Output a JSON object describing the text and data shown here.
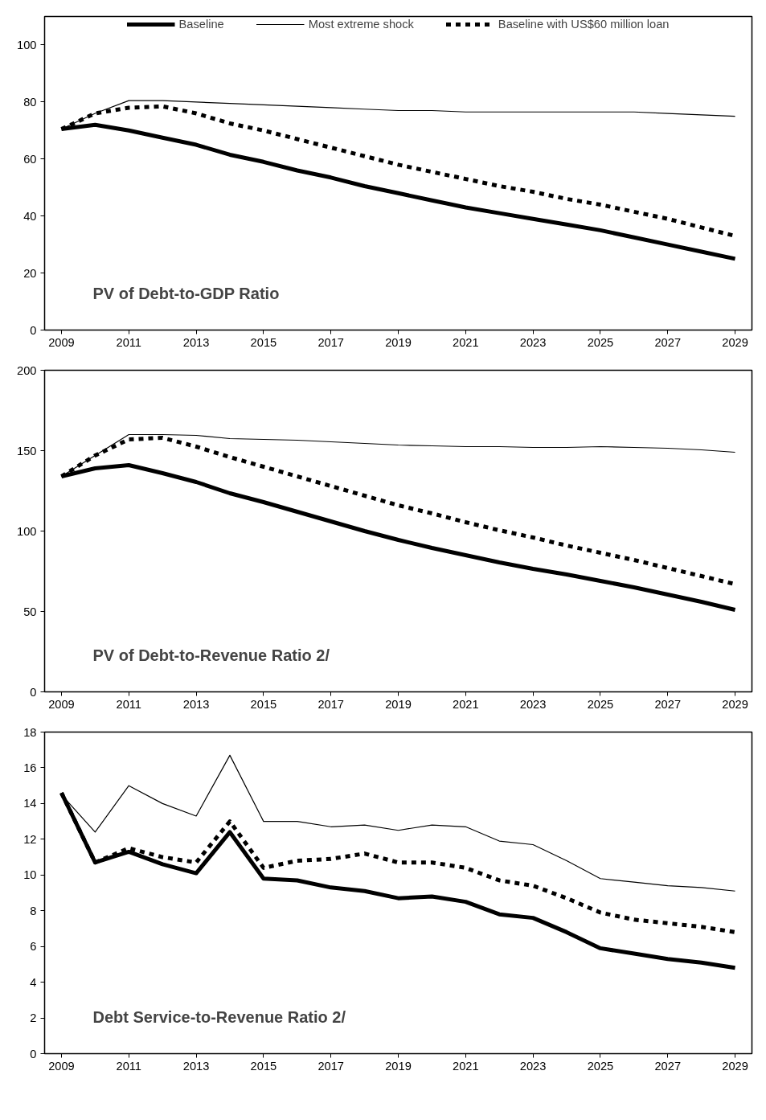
{
  "chart_data": [
    {
      "type": "line",
      "x": [
        2009,
        2010,
        2011,
        2012,
        2013,
        2014,
        2015,
        2016,
        2017,
        2018,
        2019,
        2020,
        2021,
        2022,
        2023,
        2024,
        2025,
        2026,
        2027,
        2028,
        2029
      ],
      "xlim": [
        2008.5,
        2029.5
      ],
      "xticks": [
        2009,
        2011,
        2013,
        2015,
        2017,
        2019,
        2021,
        2023,
        2025,
        2027,
        2029
      ],
      "ylim": [
        0,
        110
      ],
      "yticks": [
        0,
        20,
        40,
        60,
        80,
        100
      ],
      "grid": false,
      "legend": "top",
      "marker": "none",
      "annotations": [
        "PV of Debt-to-GDP Ratio"
      ],
      "series": [
        {
          "name": "Baseline",
          "color": "#000000",
          "line_style": "solid",
          "values": [
            70.5,
            72,
            70,
            67.5,
            65,
            61.5,
            59,
            56,
            53.5,
            50.5,
            48,
            45.5,
            43,
            41,
            39,
            37,
            35,
            32.5,
            30,
            27.5,
            25
          ]
        },
        {
          "name": "Most extreme shock",
          "color": "#000000",
          "line_style": "solid",
          "values": [
            70.5,
            76,
            80.5,
            80.5,
            80,
            79.5,
            79,
            78.5,
            78,
            77.5,
            77,
            77,
            76.5,
            76.5,
            76.5,
            76.5,
            76.5,
            76.5,
            76,
            75.5,
            75
          ]
        },
        {
          "name": "Baseline with US$60 million loan",
          "color": "#000000",
          "line_style": "dashed",
          "values": [
            70.5,
            76,
            78,
            78.5,
            76,
            72.5,
            70,
            67,
            64,
            61,
            58,
            55.5,
            53,
            50.5,
            48.5,
            46,
            44,
            41.5,
            39,
            36,
            33
          ]
        }
      ]
    },
    {
      "type": "line",
      "x": [
        2009,
        2010,
        2011,
        2012,
        2013,
        2014,
        2015,
        2016,
        2017,
        2018,
        2019,
        2020,
        2021,
        2022,
        2023,
        2024,
        2025,
        2026,
        2027,
        2028,
        2029
      ],
      "xlim": [
        2008.5,
        2029.5
      ],
      "xticks": [
        2009,
        2011,
        2013,
        2015,
        2017,
        2019,
        2021,
        2023,
        2025,
        2027,
        2029
      ],
      "ylim": [
        0,
        200
      ],
      "yticks": [
        0,
        50,
        100,
        150,
        200
      ],
      "grid": false,
      "marker": "none",
      "annotations": [
        "PV of Debt-to-Revenue Ratio 2/"
      ],
      "series": [
        {
          "color": "#000000",
          "line_style": "solid",
          "values": [
            134,
            139,
            141,
            136,
            130.5,
            123.5,
            118,
            112,
            106,
            100,
            94.5,
            89.5,
            85,
            80.5,
            76.5,
            73,
            69,
            65,
            60.5,
            56,
            51
          ]
        },
        {
          "color": "#000000",
          "line_style": "solid",
          "values": [
            134,
            147,
            160,
            160,
            159.5,
            157.5,
            157,
            156.5,
            155.5,
            154.5,
            153.5,
            153,
            152.5,
            152.5,
            152,
            152,
            152.5,
            152,
            151.5,
            150.5,
            149
          ]
        },
        {
          "color": "#000000",
          "line_style": "dashed",
          "values": [
            134,
            147,
            157,
            158,
            152.5,
            146,
            140,
            134,
            128,
            122,
            116,
            111,
            105.5,
            100.5,
            96,
            91,
            86.5,
            82,
            77,
            72,
            67
          ]
        }
      ]
    },
    {
      "type": "line",
      "x": [
        2009,
        2010,
        2011,
        2012,
        2013,
        2014,
        2015,
        2016,
        2017,
        2018,
        2019,
        2020,
        2021,
        2022,
        2023,
        2024,
        2025,
        2026,
        2027,
        2028,
        2029
      ],
      "xlim": [
        2008.5,
        2029.5
      ],
      "xticks": [
        2009,
        2011,
        2013,
        2015,
        2017,
        2019,
        2021,
        2023,
        2025,
        2027,
        2029
      ],
      "ylim": [
        0,
        18
      ],
      "yticks": [
        0,
        2,
        4,
        6,
        8,
        10,
        12,
        14,
        16,
        18
      ],
      "grid": false,
      "marker": "none",
      "annotations": [
        "Debt Service-to-Revenue Ratio 2/"
      ],
      "series": [
        {
          "color": "#000000",
          "line_style": "solid",
          "values": [
            14.6,
            10.7,
            11.3,
            10.6,
            10.1,
            12.4,
            9.8,
            9.7,
            9.3,
            9.1,
            8.7,
            8.8,
            8.5,
            7.8,
            7.6,
            6.8,
            5.9,
            5.6,
            5.3,
            5.1,
            4.8
          ]
        },
        {
          "color": "#000000",
          "line_style": "solid",
          "values": [
            14.5,
            12.4,
            15.0,
            14.0,
            13.3,
            16.7,
            13.0,
            13.0,
            12.7,
            12.8,
            12.5,
            12.8,
            12.7,
            11.9,
            11.7,
            10.8,
            9.8,
            9.6,
            9.4,
            9.3,
            9.1
          ]
        },
        {
          "color": "#000000",
          "line_style": "dashed",
          "values": [
            14.6,
            10.7,
            11.5,
            11.0,
            10.7,
            13.0,
            10.4,
            10.8,
            10.9,
            11.2,
            10.7,
            10.7,
            10.4,
            9.7,
            9.4,
            8.7,
            7.9,
            7.5,
            7.3,
            7.1,
            6.8
          ]
        }
      ]
    }
  ]
}
